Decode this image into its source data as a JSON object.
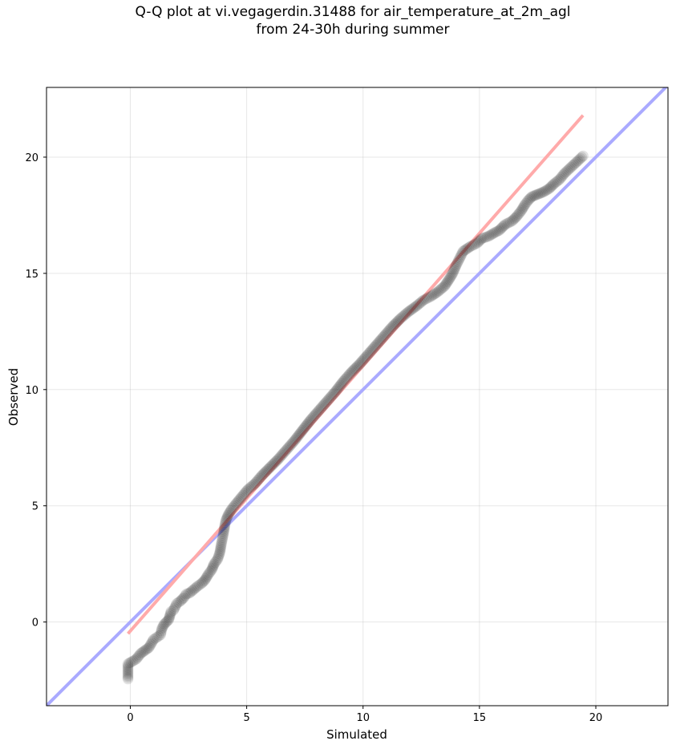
{
  "chart_data": {
    "type": "scatter",
    "title_line1": "Q-Q plot at vi.vegagerdin.31488 for air_temperature_at_2m_agl",
    "title_line2": "from 24-30h during summer",
    "xlabel": "Simulated",
    "ylabel": "Observed",
    "xlim": [
      -3.6,
      23.1
    ],
    "ylim": [
      -3.6,
      23.0
    ],
    "xticks": [
      0,
      5,
      10,
      15,
      20
    ],
    "yticks": [
      0,
      5,
      10,
      15,
      20
    ],
    "grid": true,
    "series": [
      {
        "values_points": [
          [
            -0.1,
            -2.45
          ],
          [
            -0.1,
            -1.8
          ],
          [
            0.25,
            -1.6
          ],
          [
            0.45,
            -1.35
          ],
          [
            0.8,
            -1.1
          ],
          [
            1.0,
            -0.75
          ],
          [
            1.15,
            -0.65
          ],
          [
            1.3,
            -0.55
          ],
          [
            1.35,
            -0.3
          ],
          [
            1.45,
            -0.1
          ],
          [
            1.65,
            0.1
          ],
          [
            1.75,
            0.45
          ],
          [
            1.85,
            0.5
          ],
          [
            2.0,
            0.8
          ],
          [
            2.15,
            0.9
          ],
          [
            2.3,
            1.05
          ],
          [
            2.4,
            1.2
          ],
          [
            2.55,
            1.25
          ],
          [
            2.9,
            1.55
          ],
          [
            3.05,
            1.65
          ],
          [
            3.2,
            1.8
          ],
          [
            3.35,
            2.05
          ],
          [
            3.5,
            2.25
          ],
          [
            3.6,
            2.5
          ],
          [
            3.75,
            2.7
          ],
          [
            3.85,
            3.0
          ],
          [
            3.9,
            3.3
          ],
          [
            3.95,
            3.55
          ],
          [
            4.0,
            3.8
          ],
          [
            4.05,
            4.1
          ],
          [
            4.1,
            4.35
          ],
          [
            4.2,
            4.6
          ],
          [
            4.35,
            4.85
          ],
          [
            4.55,
            5.1
          ],
          [
            4.8,
            5.4
          ],
          [
            5.05,
            5.7
          ],
          [
            5.35,
            5.95
          ],
          [
            5.65,
            6.3
          ],
          [
            6.0,
            6.65
          ],
          [
            6.35,
            7.0
          ],
          [
            6.7,
            7.4
          ],
          [
            7.05,
            7.8
          ],
          [
            7.4,
            8.25
          ],
          [
            7.75,
            8.7
          ],
          [
            8.1,
            9.1
          ],
          [
            8.45,
            9.5
          ],
          [
            8.8,
            9.9
          ],
          [
            9.15,
            10.35
          ],
          [
            9.5,
            10.75
          ],
          [
            9.85,
            11.1
          ],
          [
            10.2,
            11.5
          ],
          [
            10.55,
            11.9
          ],
          [
            10.9,
            12.3
          ],
          [
            11.25,
            12.7
          ],
          [
            11.6,
            13.05
          ],
          [
            11.95,
            13.35
          ],
          [
            12.3,
            13.6
          ],
          [
            12.6,
            13.85
          ],
          [
            12.9,
            14.0
          ],
          [
            13.2,
            14.2
          ],
          [
            13.5,
            14.45
          ],
          [
            13.7,
            14.75
          ],
          [
            13.85,
            15.0
          ],
          [
            14.0,
            15.35
          ],
          [
            14.15,
            15.65
          ],
          [
            14.3,
            15.95
          ],
          [
            14.6,
            16.15
          ],
          [
            14.9,
            16.3
          ],
          [
            15.1,
            16.5
          ],
          [
            15.4,
            16.6
          ],
          [
            15.65,
            16.75
          ],
          [
            15.85,
            16.85
          ],
          [
            16.1,
            17.1
          ],
          [
            16.4,
            17.25
          ],
          [
            16.6,
            17.45
          ],
          [
            16.8,
            17.7
          ],
          [
            16.95,
            17.95
          ],
          [
            17.1,
            18.15
          ],
          [
            17.25,
            18.3
          ],
          [
            17.5,
            18.4
          ],
          [
            17.75,
            18.5
          ],
          [
            18.0,
            18.65
          ],
          [
            18.2,
            18.85
          ],
          [
            18.45,
            19.05
          ],
          [
            18.65,
            19.3
          ],
          [
            19.45,
            20.05
          ]
        ]
      }
    ],
    "reference_line": {
      "color": "#aaaaff",
      "from": [
        -3.6,
        -3.6
      ],
      "to": [
        23.1,
        23.1
      ]
    },
    "fit_line": {
      "color": "#ffaaaa",
      "from": [
        -0.1,
        -0.5
      ],
      "to": [
        19.45,
        21.8
      ]
    }
  }
}
